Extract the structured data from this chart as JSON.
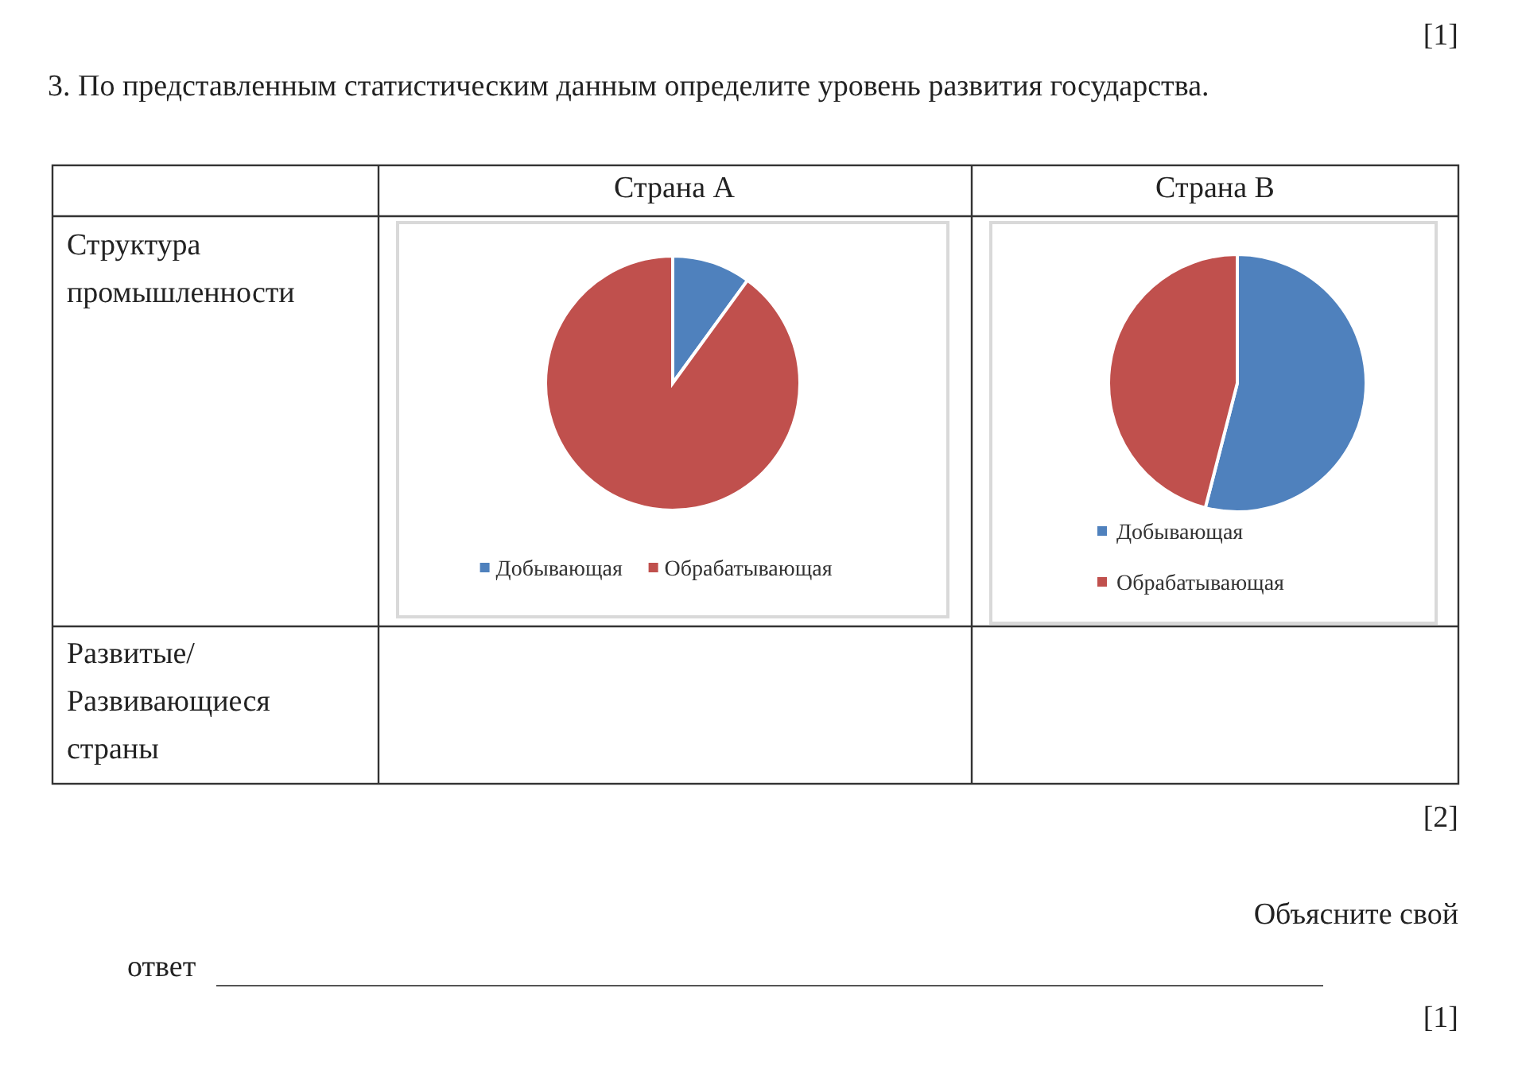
{
  "chart_data": [
    {
      "type": "pie",
      "title": "Страна А",
      "categories": [
        "Добывающая",
        "Обрабатывающая"
      ],
      "values": [
        10,
        90
      ],
      "colors": [
        "#4f81bd",
        "#c0504d"
      ],
      "legend": "bottom",
      "annotations": [
        "3. По представленным статистическим данным определите уровень развития государства.",
        "Структура промышленности",
        "Развитые/ Развивающиеся страны",
        "[1]",
        "[2]",
        "Объясните свой",
        "ответ",
        "[1]"
      ]
    },
    {
      "type": "pie",
      "title": "Страна В",
      "categories": [
        "Добывающая",
        "Обрабатывающая"
      ],
      "values": [
        54,
        46
      ],
      "colors": [
        "#4f81bd",
        "#c0504d"
      ],
      "legend": "bottom"
    }
  ]
}
